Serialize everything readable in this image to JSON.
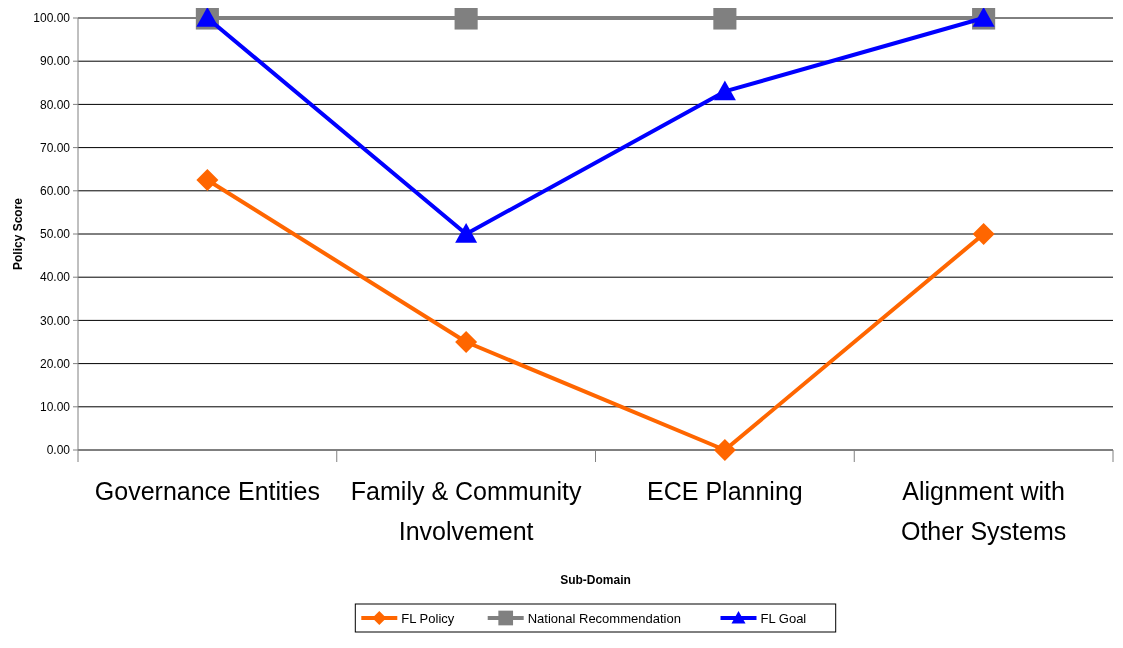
{
  "chart_data": {
    "type": "line",
    "xlabel": "Sub-Domain",
    "ylabel": "Policy Score",
    "categories": [
      "Governance Entities",
      "Family & Community Involvement",
      "ECE Planning",
      "Alignment with Other Systems"
    ],
    "series": [
      {
        "name": "FL Policy",
        "color": "#ff6600",
        "marker": "diamond",
        "values": [
          62.5,
          25,
          0,
          50
        ]
      },
      {
        "name": "National Recommendation",
        "color": "#808080",
        "marker": "square",
        "values": [
          100,
          100,
          100,
          100
        ]
      },
      {
        "name": "FL Goal",
        "color": "#0000ff",
        "marker": "triangle",
        "values": [
          100,
          50,
          83,
          100
        ]
      }
    ],
    "ylim": [
      0,
      100
    ],
    "yticks": [
      {
        "value": 0,
        "label": "0.00"
      },
      {
        "value": 10,
        "label": "10.00"
      },
      {
        "value": 20,
        "label": "20.00"
      },
      {
        "value": 30,
        "label": "30.00"
      },
      {
        "value": 40,
        "label": "40.00"
      },
      {
        "value": 50,
        "label": "50.00"
      },
      {
        "value": 60,
        "label": "60.00"
      },
      {
        "value": 70,
        "label": "70.00"
      },
      {
        "value": 80,
        "label": "80.00"
      },
      {
        "value": 90,
        "label": "90.00"
      },
      {
        "value": 100,
        "label": "100.00"
      }
    ],
    "grid": "y",
    "legend": "bottom",
    "line_style": "solid"
  }
}
